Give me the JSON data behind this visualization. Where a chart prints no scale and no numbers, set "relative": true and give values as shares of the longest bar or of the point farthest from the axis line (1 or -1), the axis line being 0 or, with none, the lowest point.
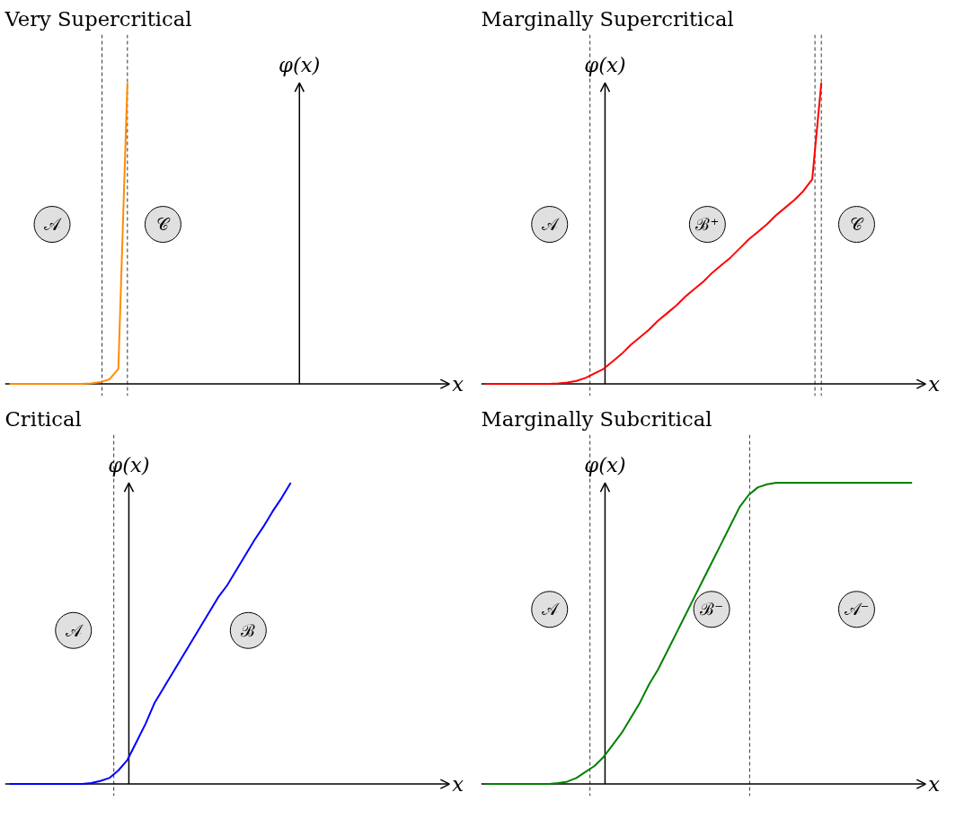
{
  "chart_data": [
    {
      "type": "line",
      "title": "Very Supercritical",
      "xlabel": "x",
      "ylabel": "φ(x)",
      "relative": true,
      "grid": false,
      "line_style": "solid",
      "categories": [
        null,
        null,
        null,
        null,
        null,
        null,
        null,
        null,
        null,
        null,
        null,
        null,
        null,
        null,
        null,
        null,
        null,
        null,
        null,
        null,
        null,
        null,
        null,
        null,
        null,
        null,
        null,
        null,
        null,
        null,
        null,
        null,
        null,
        null,
        null,
        null,
        null,
        null,
        null,
        null,
        null,
        null,
        null,
        null,
        null,
        null,
        null,
        null
      ],
      "series": [
        {
          "color": "#ff8c00",
          "values": [
            0,
            0,
            0,
            0,
            0,
            0,
            0,
            0,
            0,
            0.002,
            0.006,
            0.015,
            0.05,
            1.0,
            null,
            null,
            null,
            null,
            null,
            null,
            null,
            null,
            null,
            null,
            null,
            null,
            null,
            null,
            null,
            null,
            null,
            null,
            null,
            null,
            null,
            null,
            null,
            null,
            null,
            null,
            null,
            null,
            null,
            null,
            null,
            null,
            null,
            null
          ]
        }
      ],
      "annotations": [
        {
          "text": "𝒜",
          "y": 0.53
        },
        {
          "text": "𝒞",
          "y": 0.53
        }
      ]
    },
    {
      "type": "line",
      "title": "Marginally Supercritical",
      "xlabel": "x",
      "ylabel": "φ(x)",
      "relative": true,
      "grid": false,
      "line_style": "solid",
      "categories": [
        null,
        null,
        null,
        null,
        null,
        null,
        null,
        null,
        null,
        null,
        null,
        null,
        null,
        null,
        null,
        null,
        null,
        null,
        null,
        null,
        null,
        null,
        null,
        null,
        null,
        null,
        null,
        null,
        null,
        null,
        null,
        null,
        null,
        null,
        null,
        null,
        null,
        null,
        null,
        null,
        null,
        null,
        null,
        null,
        null,
        null,
        null,
        null
      ],
      "series": [
        {
          "color": "#ff0000",
          "values": [
            0,
            0,
            0,
            0,
            0,
            0,
            0,
            0,
            0.002,
            0.005,
            0.01,
            0.02,
            0.035,
            0.05,
            0.075,
            0.1,
            0.13,
            0.155,
            0.18,
            0.21,
            0.235,
            0.26,
            0.29,
            0.315,
            0.34,
            0.37,
            0.395,
            0.42,
            0.45,
            0.48,
            0.505,
            0.53,
            0.56,
            0.585,
            0.61,
            0.64,
            0.68,
            1.0,
            null,
            null,
            null,
            null,
            null,
            null,
            null,
            null,
            null,
            null
          ]
        }
      ],
      "annotations": [
        {
          "text": "𝒜",
          "y": 0.53
        },
        {
          "text": "ℬ⁺",
          "y": 0.53
        },
        {
          "text": "𝒞",
          "y": 0.53
        }
      ]
    },
    {
      "type": "line",
      "title": "Critical",
      "xlabel": "x",
      "ylabel": "φ(x)",
      "relative": true,
      "grid": false,
      "line_style": "solid",
      "categories": [
        null,
        null,
        null,
        null,
        null,
        null,
        null,
        null,
        null,
        null,
        null,
        null,
        null,
        null,
        null,
        null,
        null,
        null,
        null,
        null,
        null,
        null,
        null,
        null,
        null,
        null,
        null,
        null,
        null,
        null,
        null,
        null,
        null,
        null,
        null,
        null,
        null,
        null,
        null,
        null,
        null,
        null,
        null,
        null,
        null,
        null,
        null,
        null
      ],
      "series": [
        {
          "color": "#0000ff",
          "values": [
            0,
            0,
            0,
            0,
            0,
            0,
            0,
            0,
            0,
            0.003,
            0.01,
            0.02,
            0.045,
            0.08,
            0.14,
            0.2,
            0.27,
            0.32,
            0.37,
            0.42,
            0.47,
            0.52,
            0.57,
            0.62,
            0.66,
            0.71,
            0.76,
            0.81,
            0.855,
            0.905,
            0.95,
            1.0,
            null,
            null,
            null,
            null,
            null,
            null,
            null,
            null,
            null,
            null,
            null,
            null,
            null,
            null,
            null,
            null
          ]
        }
      ],
      "annotations": [
        {
          "text": "𝒜",
          "y": 0.51
        },
        {
          "text": "ℬ",
          "y": 0.51
        }
      ]
    },
    {
      "type": "line",
      "title": "Marginally Subcritical",
      "xlabel": "x",
      "ylabel": "φ(x)",
      "relative": true,
      "grid": false,
      "line_style": "solid",
      "categories": [
        null,
        null,
        null,
        null,
        null,
        null,
        null,
        null,
        null,
        null,
        null,
        null,
        null,
        null,
        null,
        null,
        null,
        null,
        null,
        null,
        null,
        null,
        null,
        null,
        null,
        null,
        null,
        null,
        null,
        null,
        null,
        null,
        null,
        null,
        null,
        null,
        null,
        null,
        null,
        null,
        null,
        null,
        null,
        null,
        null,
        null,
        null,
        null
      ],
      "series": [
        {
          "color": "#008000",
          "values": [
            0,
            0,
            0,
            0,
            0,
            0,
            0,
            0,
            0.003,
            0.008,
            0.02,
            0.04,
            0.06,
            0.09,
            0.13,
            0.17,
            0.22,
            0.27,
            0.33,
            0.38,
            0.44,
            0.5,
            0.56,
            0.62,
            0.68,
            0.74,
            0.8,
            0.86,
            0.92,
            0.96,
            0.985,
            0.995,
            1,
            1,
            1,
            1,
            1,
            1,
            1,
            1,
            1,
            1,
            1,
            1,
            1,
            1,
            1,
            1
          ]
        }
      ],
      "annotations": [
        {
          "text": "𝒜",
          "y": 0.58
        },
        {
          "text": "ℬ⁻",
          "y": 0.58
        },
        {
          "text": "𝒜⁻",
          "y": 0.58
        }
      ]
    }
  ]
}
